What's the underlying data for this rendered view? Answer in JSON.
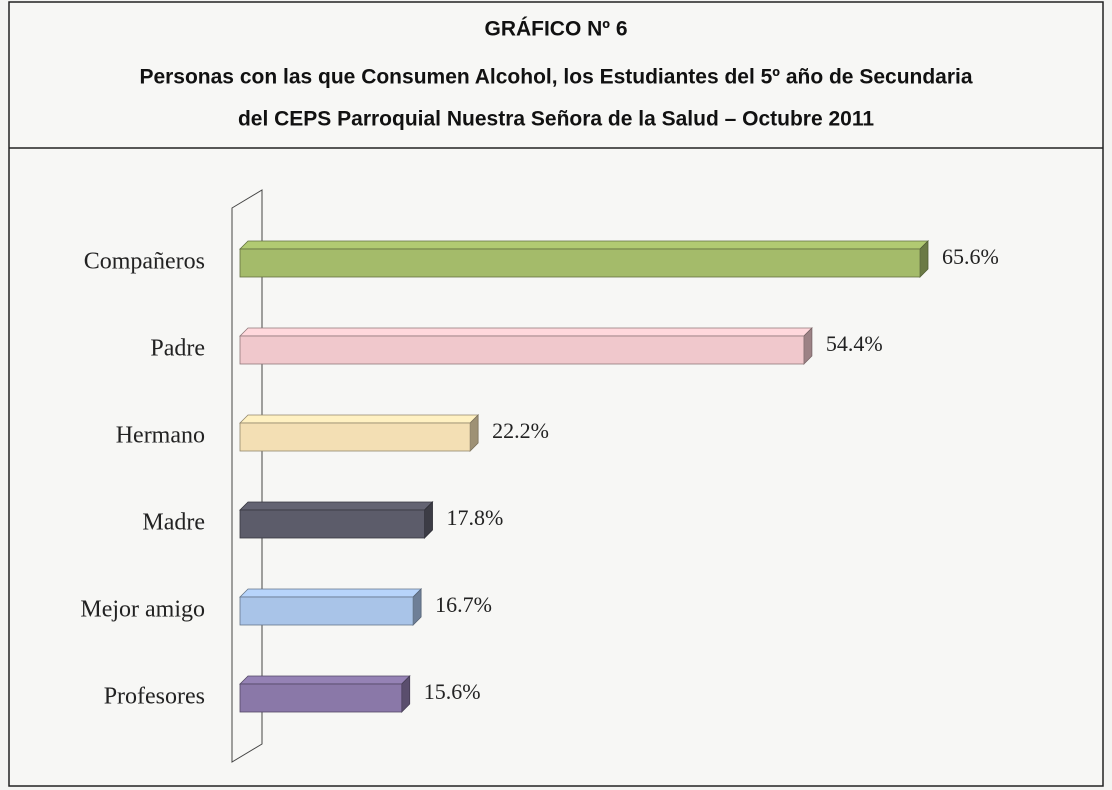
{
  "chart_data": {
    "type": "bar",
    "orientation": "horizontal",
    "title": "GRÁFICO Nº 6",
    "subtitle": [
      "Personas con las que Consumen Alcohol, los  Estudiantes del 5º año de Secundaria",
      "del CEPS Parroquial Nuestra Señora de la Salud – Octubre 2011"
    ],
    "categories": [
      "Compañeros",
      "Padre",
      "Hermano",
      "Madre",
      "Mejor amigo",
      "Profesores"
    ],
    "values": [
      65.6,
      54.4,
      22.2,
      17.8,
      16.7,
      15.6
    ],
    "value_labels": [
      "65.6%",
      "54.4%",
      "22.2%",
      "17.8%",
      "16.7%",
      "15.6%"
    ],
    "colors": [
      "#a4bb6a",
      "#f0c8cc",
      "#f3dfb4",
      "#5c5c6a",
      "#a9c4e8",
      "#8a78a8"
    ]
  }
}
